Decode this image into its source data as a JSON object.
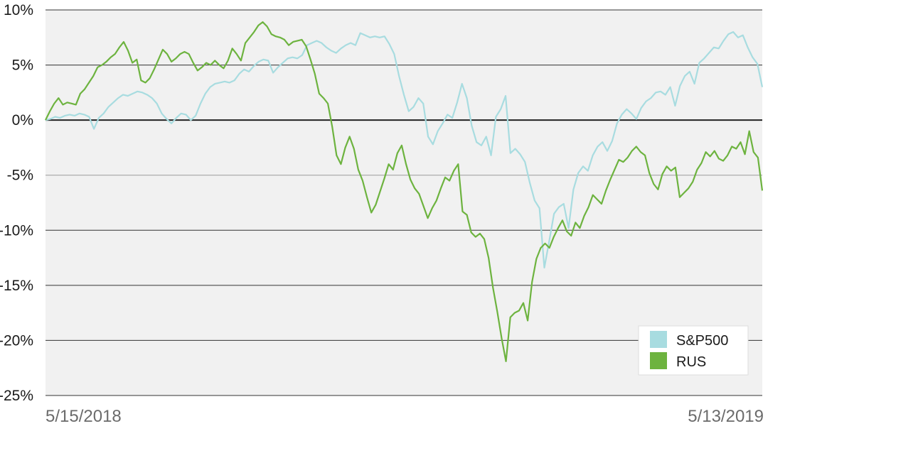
{
  "chart_data": {
    "type": "line",
    "x_start_label": "5/15/2018",
    "x_end_label": "5/13/2019",
    "ylim": [
      -25,
      10
    ],
    "y_ticks": [
      10,
      5,
      0,
      -5,
      -10,
      -15,
      -20,
      -25
    ],
    "y_tick_labels": [
      "10%",
      "5%",
      "0%",
      "-5%",
      "-10%",
      "-15%",
      "-20%",
      "-25%"
    ],
    "grid": true,
    "legend_position": "bottom-right",
    "plot_background": "#f1f1f1",
    "series": [
      {
        "name": "S&P500",
        "color": "#a8dce0",
        "values": [
          0.0,
          0.1,
          0.3,
          0.2,
          0.4,
          0.5,
          0.4,
          0.6,
          0.5,
          0.3,
          -0.8,
          0.2,
          0.6,
          1.2,
          1.6,
          2.0,
          2.3,
          2.2,
          2.4,
          2.6,
          2.5,
          2.3,
          2.0,
          1.5,
          0.6,
          0.1,
          -0.3,
          0.2,
          0.6,
          0.5,
          0.0,
          0.4,
          1.5,
          2.4,
          3.0,
          3.3,
          3.4,
          3.5,
          3.4,
          3.6,
          4.2,
          4.6,
          4.4,
          4.9,
          5.3,
          5.5,
          5.4,
          4.3,
          4.8,
          5.2,
          5.6,
          5.7,
          5.6,
          5.9,
          6.8,
          7.0,
          7.2,
          7.0,
          6.6,
          6.3,
          6.1,
          6.5,
          6.8,
          7.0,
          6.8,
          7.9,
          7.7,
          7.5,
          7.6,
          7.5,
          7.6,
          6.9,
          6.0,
          4.0,
          2.3,
          0.8,
          1.2,
          2.0,
          1.5,
          -1.5,
          -2.2,
          -1.0,
          -0.3,
          0.5,
          0.2,
          1.6,
          3.3,
          2.0,
          -0.5,
          -2.0,
          -2.3,
          -1.5,
          -3.2,
          0.3,
          1.0,
          2.2,
          -3.0,
          -2.6,
          -3.1,
          -3.8,
          -5.7,
          -7.3,
          -8.0,
          -13.4,
          -11.0,
          -8.5,
          -7.9,
          -7.6,
          -9.8,
          -6.3,
          -4.8,
          -4.2,
          -4.6,
          -3.2,
          -2.4,
          -2.0,
          -2.8,
          -1.9,
          -0.3,
          0.5,
          1.0,
          0.6,
          0.1,
          1.1,
          1.7,
          2.0,
          2.5,
          2.6,
          2.3,
          3.0,
          1.3,
          3.1,
          4.0,
          4.4,
          3.3,
          5.2,
          5.6,
          6.1,
          6.6,
          6.5,
          7.2,
          7.8,
          8.0,
          7.5,
          7.7,
          6.6,
          5.7,
          5.1,
          3.0
        ]
      },
      {
        "name": "RUS",
        "color": "#6db33f",
        "values": [
          0.0,
          0.8,
          1.5,
          2.0,
          1.4,
          1.6,
          1.5,
          1.4,
          2.4,
          2.8,
          3.4,
          4.0,
          4.8,
          5.0,
          5.3,
          5.7,
          6.0,
          6.6,
          7.1,
          6.3,
          5.2,
          5.5,
          3.6,
          3.4,
          3.8,
          4.6,
          5.5,
          6.4,
          6.0,
          5.3,
          5.6,
          6.0,
          6.2,
          6.0,
          5.2,
          4.5,
          4.8,
          5.2,
          5.0,
          5.4,
          5.0,
          4.7,
          5.4,
          6.5,
          6.0,
          5.4,
          7.0,
          7.5,
          8.0,
          8.6,
          8.9,
          8.5,
          7.8,
          7.6,
          7.5,
          7.3,
          6.8,
          7.1,
          7.2,
          7.3,
          6.7,
          5.5,
          4.2,
          2.4,
          2.0,
          1.5,
          -0.6,
          -3.2,
          -4.0,
          -2.5,
          -1.5,
          -2.6,
          -4.5,
          -5.5,
          -7.0,
          -8.4,
          -7.7,
          -6.5,
          -5.3,
          -4.0,
          -4.5,
          -3.0,
          -2.3,
          -4.0,
          -5.4,
          -6.2,
          -6.7,
          -7.8,
          -8.9,
          -8.0,
          -7.3,
          -6.2,
          -5.2,
          -5.5,
          -4.6,
          -4.0,
          -8.3,
          -8.6,
          -10.2,
          -10.6,
          -10.3,
          -10.8,
          -12.5,
          -15.2,
          -17.4,
          -19.8,
          -21.9,
          -17.9,
          -17.5,
          -17.3,
          -16.6,
          -18.2,
          -14.7,
          -12.6,
          -11.6,
          -11.2,
          -11.6,
          -10.6,
          -9.8,
          -9.1,
          -10.1,
          -10.5,
          -9.3,
          -9.8,
          -8.7,
          -7.9,
          -6.8,
          -7.2,
          -7.6,
          -6.4,
          -5.4,
          -4.5,
          -3.6,
          -3.8,
          -3.4,
          -2.8,
          -2.4,
          -2.9,
          -3.2,
          -4.8,
          -5.8,
          -6.3,
          -4.9,
          -4.2,
          -4.6,
          -4.3,
          -7.0,
          -6.6,
          -6.2,
          -5.6,
          -4.5,
          -3.9,
          -2.9,
          -3.3,
          -2.8,
          -3.5,
          -3.7,
          -3.2,
          -2.4,
          -2.6,
          -2.0,
          -3.1,
          -1.0,
          -2.9,
          -3.4,
          -6.4
        ]
      }
    ]
  }
}
